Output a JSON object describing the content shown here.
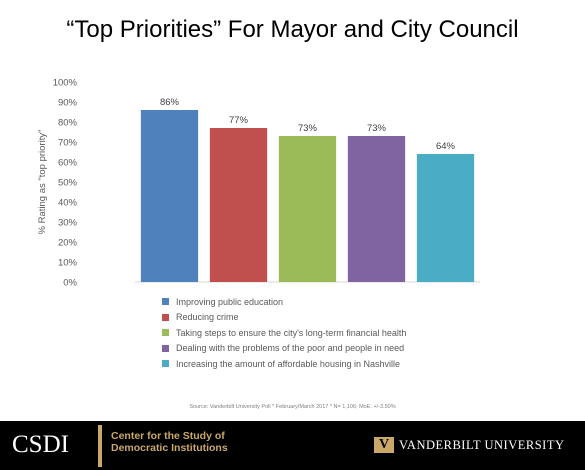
{
  "slide": {
    "title": "“Top Priorities” For Mayor and City Council",
    "source": "Source: Vanderbilt University Poll *   February/March 2017 *  N= 1,106;  MoE: +/-3.50%"
  },
  "chart_data": {
    "type": "bar",
    "ylabel": "% Rating as \"top priority\"",
    "ylim": [
      0,
      100
    ],
    "yticks": [
      "0%",
      "10%",
      "20%",
      "30%",
      "40%",
      "50%",
      "60%",
      "70%",
      "80%",
      "90%",
      "100%"
    ],
    "grid": false,
    "legend_position": "bottom",
    "categories": [
      "Improving public education",
      "Reducing crime",
      "Taking steps to ensure the city's long-term financial health",
      "Dealing with the problems of the poor and people in need",
      "Increasing the amount of affordable housing in Nashville"
    ],
    "values": [
      86,
      77,
      73,
      73,
      64
    ],
    "data_labels": [
      "86%",
      "77%",
      "73%",
      "73%",
      "64%"
    ],
    "colors": [
      "#4f81bd",
      "#c0504d",
      "#9bbb59",
      "#8064a2",
      "#4bacc6"
    ]
  },
  "footer": {
    "csdi_logo": "CSDI",
    "csdi_line1": "Center for the Study of",
    "csdi_line2": "Democratic Institutions",
    "vu_mark": "V",
    "vu_text": "VANDERBILT UNIVERSITY"
  }
}
